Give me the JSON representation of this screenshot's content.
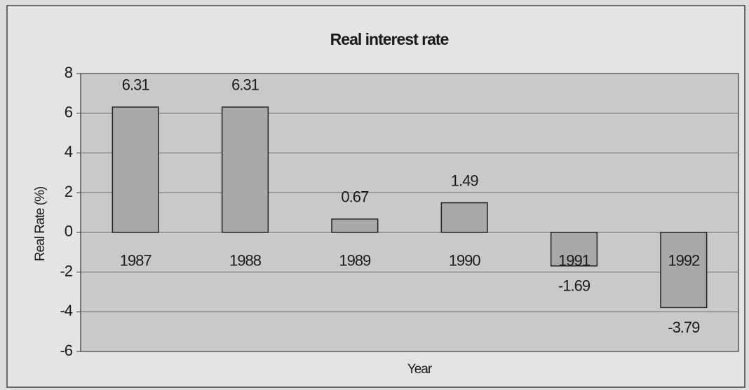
{
  "chart_data": {
    "type": "bar",
    "title": "Real interest rate",
    "x_label": "Year",
    "y_label": "Real Rate (%)",
    "categories": [
      "1987",
      "1988",
      "1989",
      "1990",
      "1991",
      "1992"
    ],
    "values": [
      6.31,
      6.31,
      0.67,
      1.49,
      -1.69,
      -3.79
    ],
    "color": "#a9a9a9",
    "ylim": [
      -6,
      8
    ],
    "yticks": [
      -6,
      -4,
      -2,
      0,
      2,
      4,
      6,
      8
    ],
    "grid": true
  }
}
